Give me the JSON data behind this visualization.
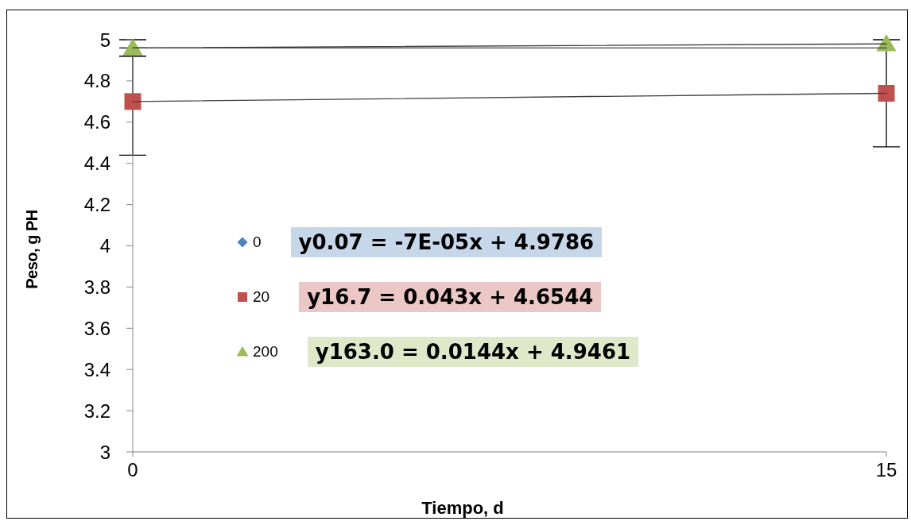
{
  "chart_data": {
    "type": "scatter",
    "xlabel": "Tiempo, d",
    "ylabel": "Peso, g PH",
    "x": [
      0,
      15
    ],
    "xlim": [
      0,
      15
    ],
    "xticks": [
      0,
      15
    ],
    "ylim": [
      3,
      5
    ],
    "yticks": [
      3,
      3.2,
      3.4,
      3.6,
      3.8,
      4,
      4.2,
      4.4,
      4.6,
      4.8,
      5
    ],
    "legend": "left",
    "series": [
      {
        "name": "0",
        "color": "#4f81bd",
        "marker": "diamond",
        "values": [
          null,
          null
        ]
      },
      {
        "name": "20",
        "color": "#c0504d",
        "marker": "square",
        "values": [
          4.7,
          4.74
        ],
        "errors": [
          0.26,
          0.26
        ]
      },
      {
        "name": "200",
        "color": "#9bbb59",
        "marker": "triangle",
        "values": [
          4.96,
          4.98
        ],
        "errors": [
          0.04,
          null
        ]
      },
      {
        "type": "line",
        "color": "#404040",
        "marker": "none",
        "values": [
          4.96,
          4.96
        ]
      },
      {
        "type": "line",
        "color": "#404040",
        "marker": "none",
        "values": [
          4.7,
          4.74
        ]
      },
      {
        "type": "line",
        "color": "#404040",
        "marker": "none",
        "values": [
          4.96,
          4.98
        ]
      }
    ],
    "annotations": [
      "y0.07 = -7E-05x + 4.9786",
      "y16.7 = 0.043x + 4.6544",
      "y163.0 = 0.0144x + 4.9461"
    ]
  }
}
